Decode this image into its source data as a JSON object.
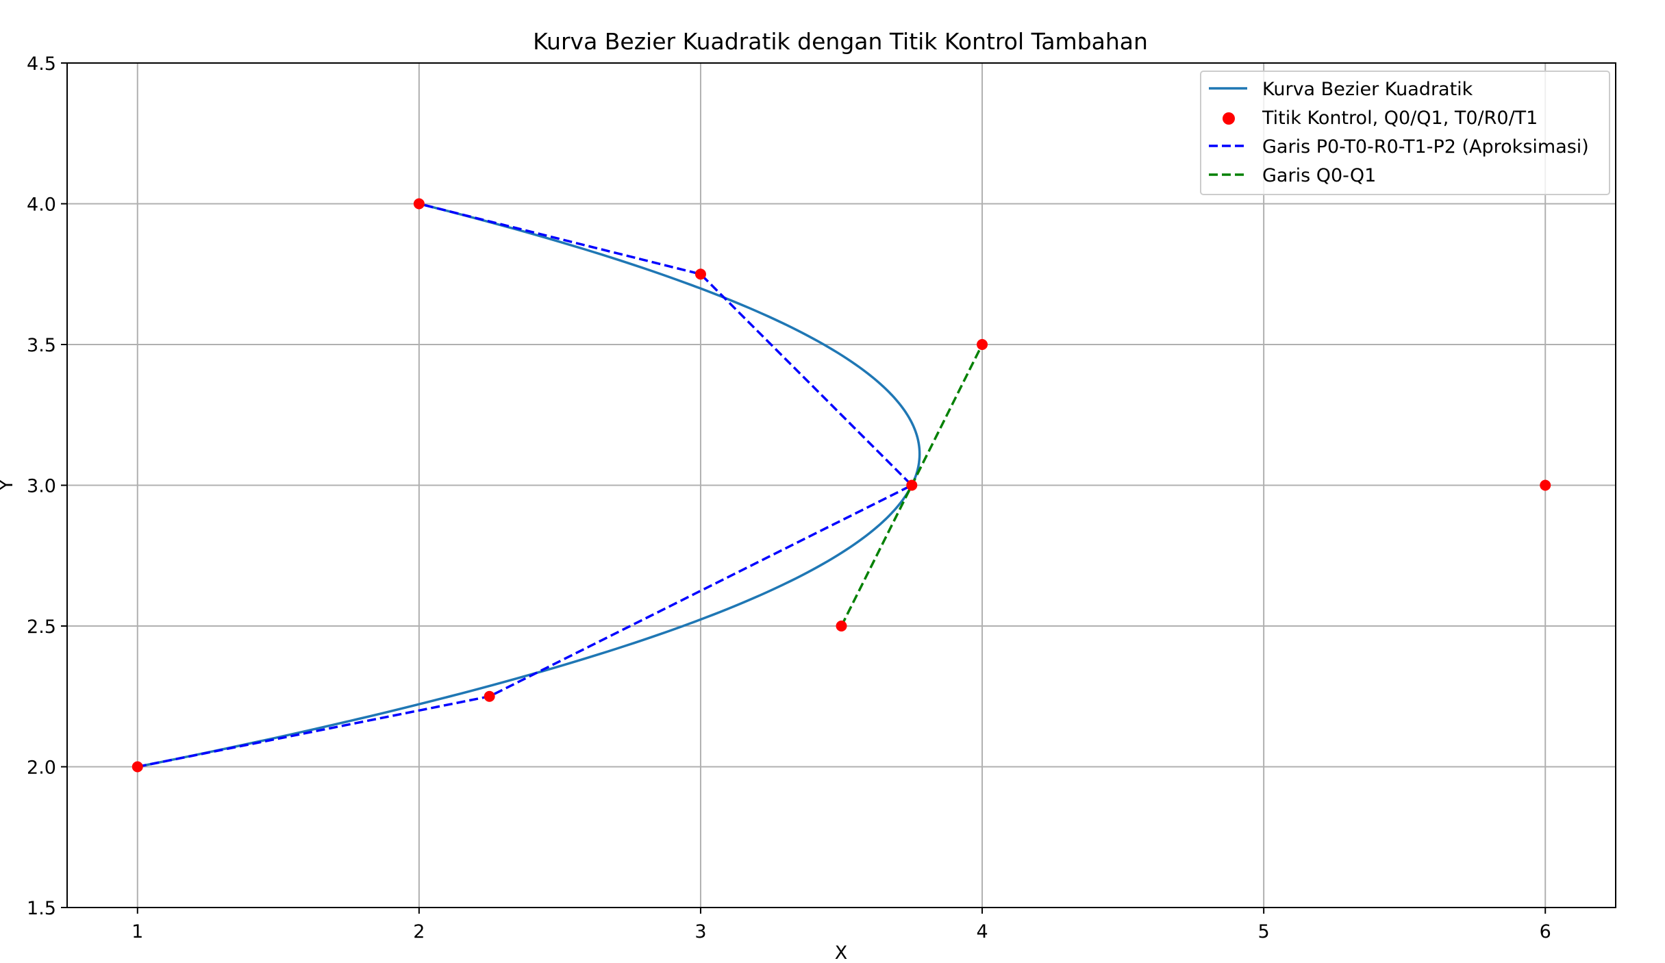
{
  "chart_data": {
    "type": "line",
    "title": "Kurva Bezier Kuadratik dengan Titik Kontrol Tambahan",
    "xlabel": "X",
    "ylabel": "Y",
    "xlim": [
      0.75,
      6.25
    ],
    "ylim": [
      1.5,
      4.5
    ],
    "xticks": [
      1,
      2,
      3,
      4,
      5,
      6
    ],
    "yticks": [
      1.5,
      2.0,
      2.5,
      3.0,
      3.5,
      4.0,
      4.5
    ],
    "xtick_labels": [
      "1",
      "2",
      "3",
      "4",
      "5",
      "6"
    ],
    "ytick_labels": [
      "1.5",
      "2.0",
      "2.5",
      "3.0",
      "3.5",
      "4.0",
      "4.5"
    ],
    "grid": true,
    "legend_position": "top-right",
    "series": [
      {
        "name": "Kurva Bezier Kuadratik",
        "kind": "bezier-curve",
        "color": "#1f77b4",
        "style": "solid",
        "control_points": [
          [
            1,
            2
          ],
          [
            6,
            3
          ],
          [
            2,
            4
          ]
        ]
      },
      {
        "name": "Titik Kontrol, Q0/Q1, T0/R0/T1",
        "kind": "scatter",
        "color": "#ff0000",
        "points": [
          [
            1,
            2
          ],
          [
            6,
            3
          ],
          [
            2,
            4
          ],
          [
            3.5,
            2.5
          ],
          [
            4,
            3.5
          ],
          [
            2.25,
            2.25
          ],
          [
            3.75,
            3.0
          ],
          [
            3,
            3.75
          ]
        ]
      },
      {
        "name": "Garis P0-T0-R0-T1-P2 (Aproksimasi)",
        "kind": "line",
        "color": "#0000ff",
        "style": "dashed",
        "points": [
          [
            1,
            2
          ],
          [
            2.25,
            2.25
          ],
          [
            3.75,
            3.0
          ],
          [
            3,
            3.75
          ],
          [
            2,
            4
          ]
        ]
      },
      {
        "name": "Garis Q0-Q1",
        "kind": "line",
        "color": "#008000",
        "style": "dashed",
        "points": [
          [
            3.5,
            2.5
          ],
          [
            4,
            3.5
          ]
        ]
      }
    ]
  }
}
